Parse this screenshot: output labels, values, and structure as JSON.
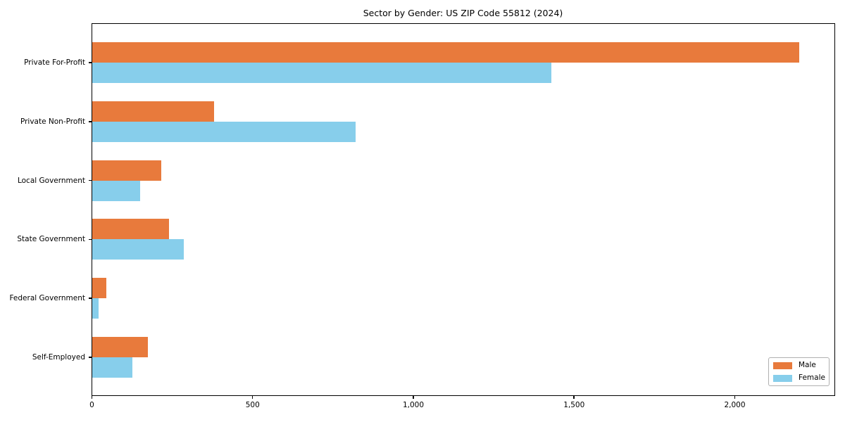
{
  "chart_data": {
    "type": "bar",
    "orientation": "horizontal",
    "title": "Sector by Gender: US ZIP Code 55812 (2024)",
    "xlabel": "",
    "ylabel": "",
    "categories": [
      "Private For-Profit",
      "Private Non-Profit",
      "Local Government",
      "State Government",
      "Federal Government",
      "Self-Employed"
    ],
    "series": [
      {
        "name": "Male",
        "color": "#e87a3c",
        "values": [
          2200,
          380,
          215,
          240,
          45,
          175
        ]
      },
      {
        "name": "Female",
        "color": "#87ceeb",
        "values": [
          1430,
          820,
          150,
          285,
          20,
          125
        ]
      }
    ],
    "xlim": [
      0,
      2310
    ],
    "xticks": [
      0,
      500,
      1000,
      1500,
      2000
    ],
    "xtick_labels": [
      "0",
      "500",
      "1,000",
      "1,500",
      "2,000"
    ],
    "grid": false,
    "legend_position": "lower right",
    "spine_color": "#000000",
    "legend_border_color": "#b0b0b0"
  }
}
